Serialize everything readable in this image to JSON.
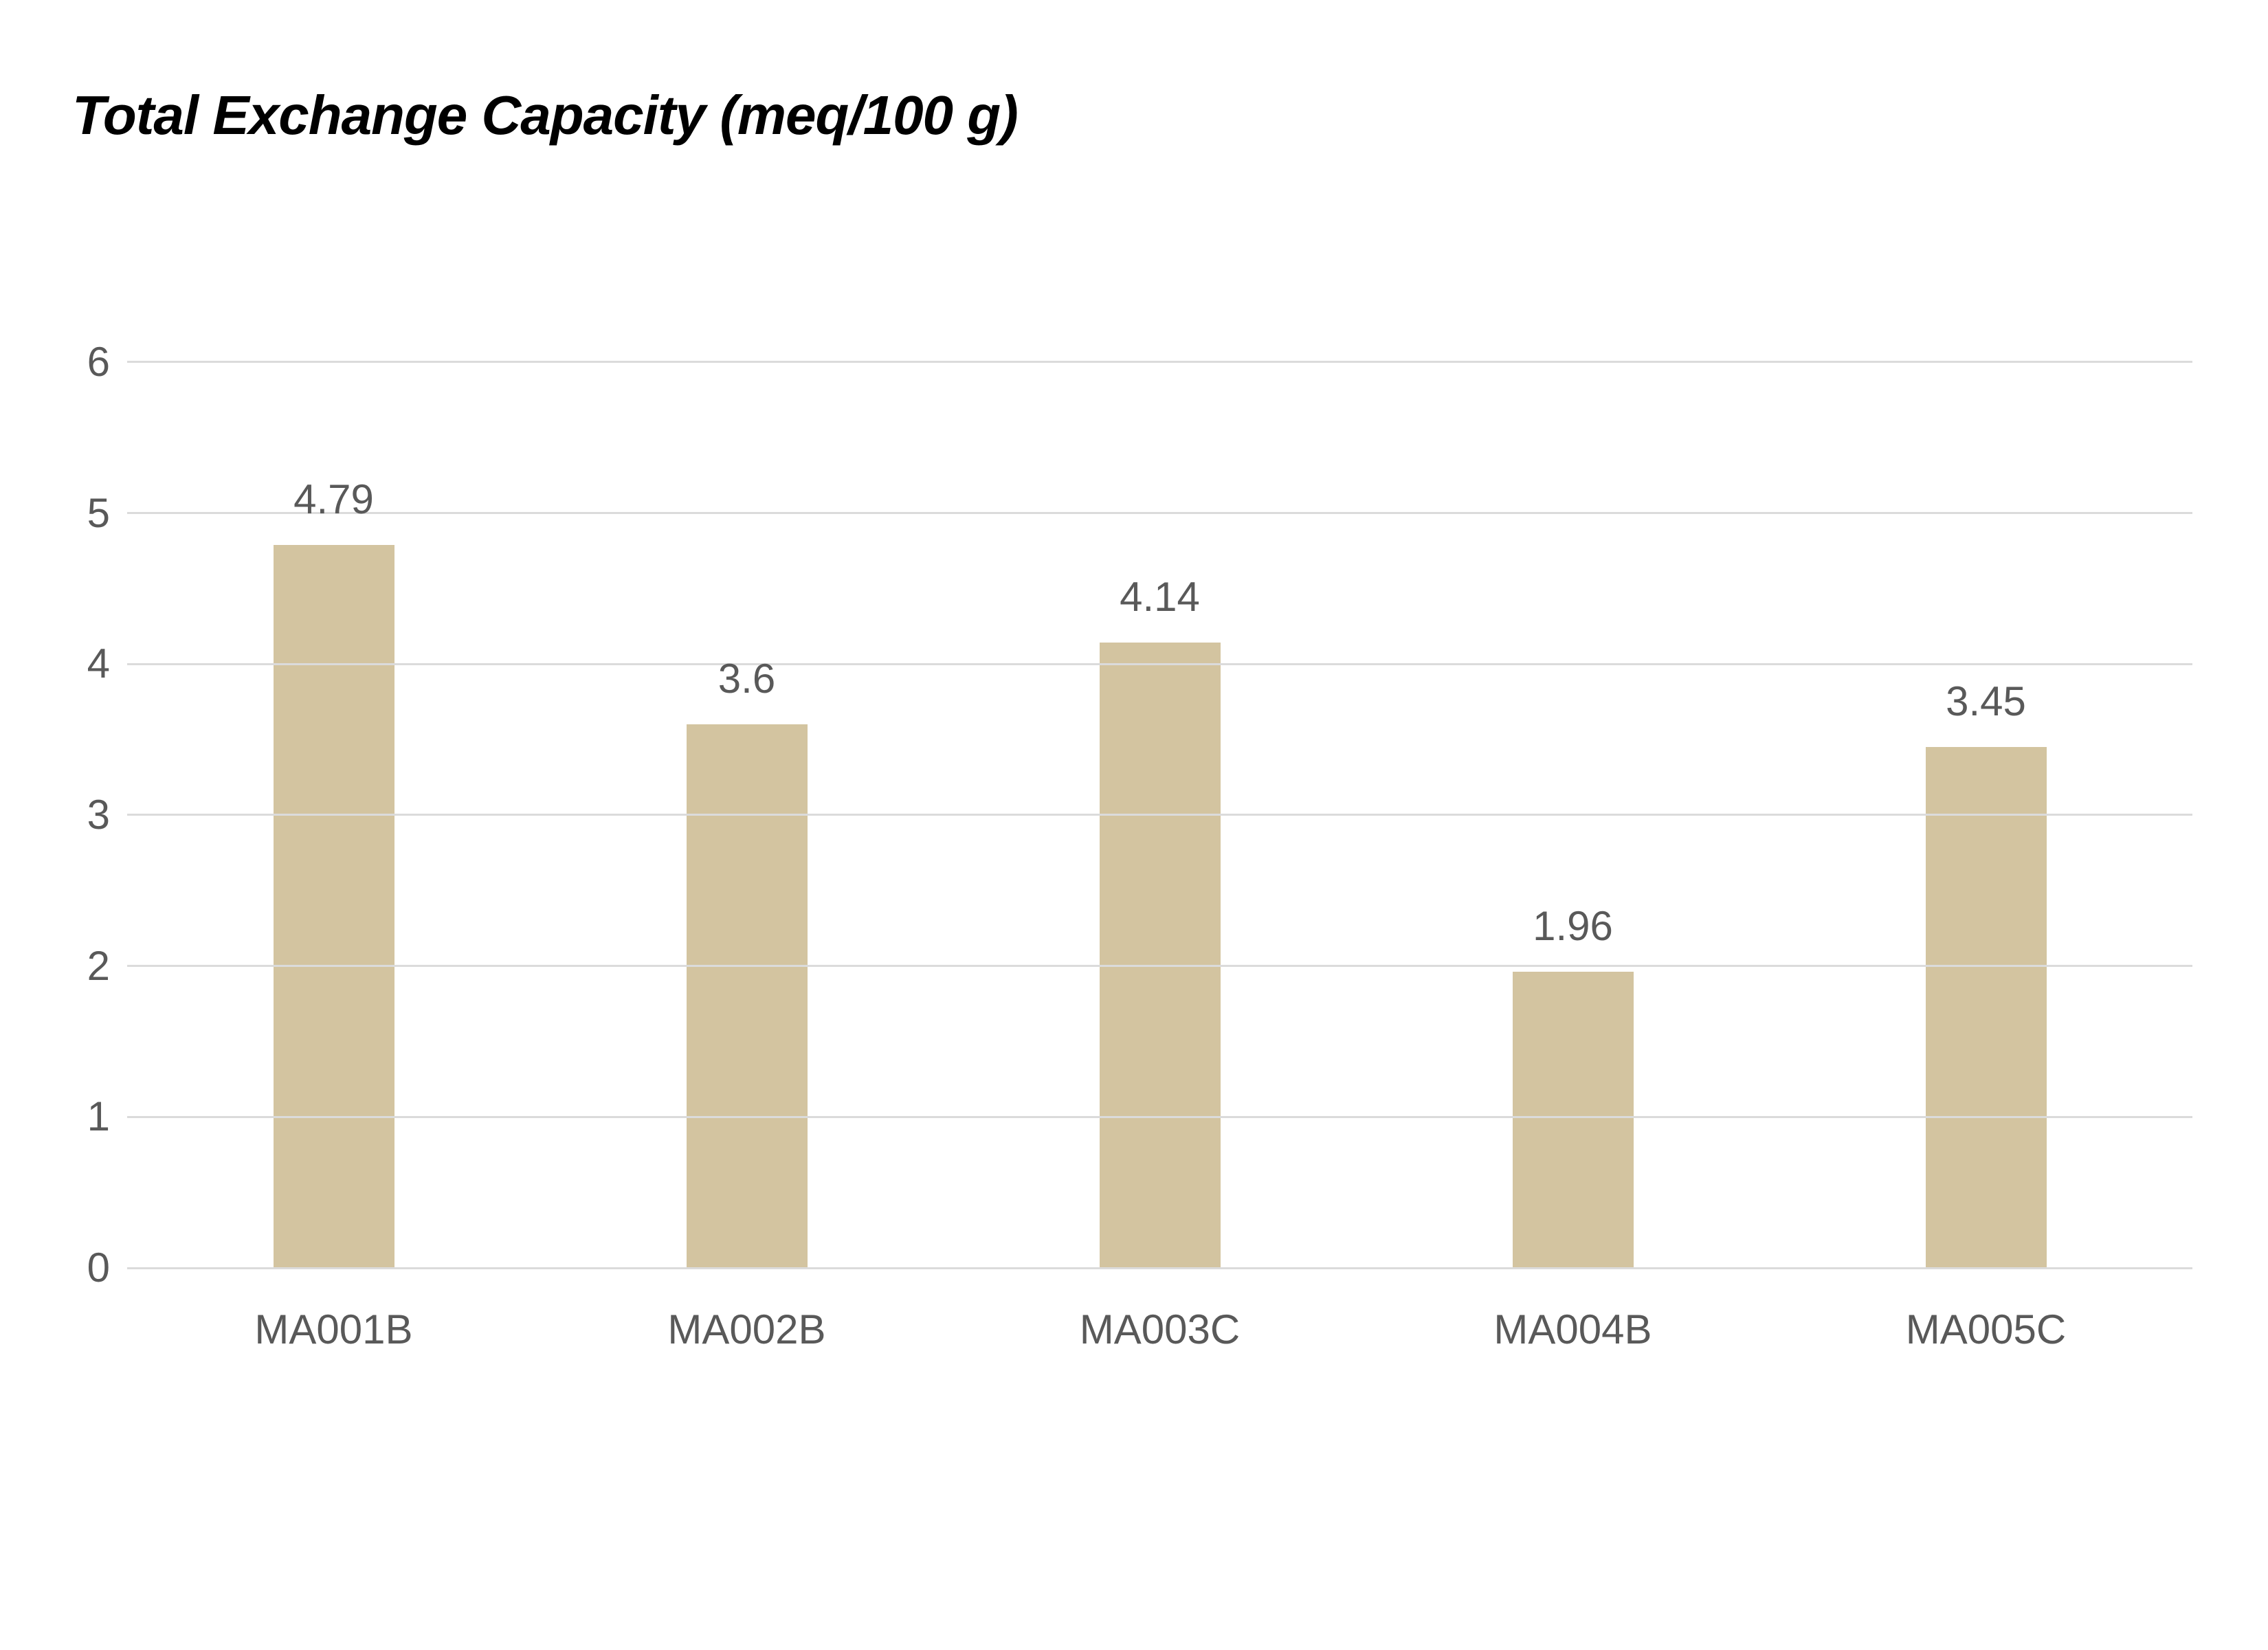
{
  "page": {
    "background": "#FFFFFF"
  },
  "chart_data": {
    "type": "bar",
    "title": "Total Exchange Capacity (meq/100 g)",
    "categories": [
      "MA001B",
      "MA002B",
      "MA003C",
      "MA004B",
      "MA005C"
    ],
    "values": [
      4.79,
      3.6,
      4.14,
      1.96,
      3.45
    ],
    "value_labels": [
      "4.79",
      "3.6",
      "4.14",
      "1.96",
      "3.45"
    ],
    "yticks": [
      0,
      1,
      2,
      3,
      4,
      5,
      6
    ],
    "ytick_labels": [
      "0",
      "1",
      "2",
      "3",
      "4",
      "5",
      "6"
    ],
    "ylim": [
      0,
      6
    ],
    "xlabel": "",
    "ylabel": "",
    "grid": "horizontal-only",
    "legend": "none",
    "colors": {
      "bar_fill": "#D3C4A0",
      "gridline": "#DBDBDB",
      "axis_label": "#595959",
      "value_label": "#595959",
      "title": "#000000",
      "background": "#FFFFFF"
    }
  }
}
